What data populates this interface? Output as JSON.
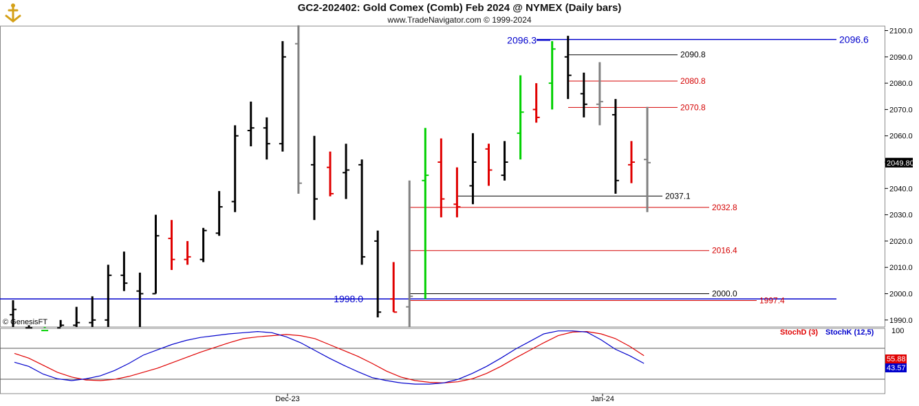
{
  "header": {
    "title": "GC2-202402:  Gold Comex (Comb) Feb 2024 @ NYMEX  (Daily bars)",
    "subtitle": "www.TradeNavigator.com © 1999-2024",
    "watermark": "© GenesisFT"
  },
  "colors": {
    "up_bar": "#000000",
    "down_bar": "#e00000",
    "neutral_bar": "#808080",
    "limit_bar": "#00d000",
    "stoch_d": "#e00000",
    "stoch_k": "#0000cc",
    "level_blue": "#0000cc",
    "level_red": "#d40000",
    "level_black": "#000000"
  },
  "chart_data": [
    {
      "type": "ohlc",
      "title": "GC2-202402:  Gold Comex (Comb) Feb 2024 @ NYMEX  (Daily bars)",
      "ylim": [
        1985,
        2105
      ],
      "y_ticks": [
        1990.0,
        2000.0,
        2010.0,
        2020.0,
        2030.0,
        2040.0,
        2050.0,
        2060.0,
        2070.0,
        2080.0,
        2090.0,
        2100.0
      ],
      "x_labels": [
        "Dec-23",
        "Jan-24"
      ],
      "last_price": "2049.80",
      "bars": [
        {
          "high": 1997.5,
          "low": 1985,
          "open": 1992,
          "close": 1994,
          "color": "black"
        },
        {
          "high": 1988,
          "low": 1985,
          "open": 1987,
          "close": 1987,
          "color": "black"
        },
        {
          "high": 1987,
          "low": 1985,
          "open": 1986,
          "close": 1986,
          "color": "green"
        },
        {
          "high": 1990,
          "low": 1985,
          "open": 1987,
          "close": 1988,
          "color": "black"
        },
        {
          "high": 1995,
          "low": 1985,
          "open": 1988,
          "close": 1989,
          "color": "black"
        },
        {
          "high": 1999,
          "low": 1985,
          "open": 1989,
          "close": 1990,
          "color": "black"
        },
        {
          "high": 2011,
          "low": 1986,
          "open": 1990,
          "close": 2007,
          "color": "black"
        },
        {
          "high": 2016,
          "low": 2001,
          "open": 2007,
          "close": 2004,
          "color": "black"
        },
        {
          "high": 2008,
          "low": 1986,
          "open": 2001,
          "close": 2000,
          "color": "black"
        },
        {
          "high": 2030,
          "low": 2000,
          "open": 2000,
          "close": 2022,
          "color": "black"
        },
        {
          "high": 2028,
          "low": 2009,
          "open": 2021,
          "close": 2013,
          "color": "red"
        },
        {
          "high": 2020,
          "low": 2011,
          "open": 2013,
          "close": 2014,
          "color": "red"
        },
        {
          "high": 2025,
          "low": 2012,
          "open": 2013,
          "close": 2024,
          "color": "black"
        },
        {
          "high": 2039,
          "low": 2022,
          "open": 2023,
          "close": 2033,
          "color": "black"
        },
        {
          "high": 2064,
          "low": 2031,
          "open": 2035,
          "close": 2060,
          "color": "black"
        },
        {
          "high": 2073,
          "low": 2056,
          "open": 2062,
          "close": 2063,
          "color": "black"
        },
        {
          "high": 2067,
          "low": 2051,
          "open": 2063,
          "close": 2057,
          "color": "black"
        },
        {
          "high": 2096,
          "low": 2054,
          "open": 2057,
          "close": 2090,
          "color": "black"
        },
        {
          "high": 2102,
          "low": 2038,
          "open": 2095,
          "close": 2042,
          "color": "gray"
        },
        {
          "high": 2060,
          "low": 2028,
          "open": 2049,
          "close": 2036,
          "color": "black"
        },
        {
          "high": 2054,
          "low": 2037,
          "open": 2048,
          "close": 2038,
          "color": "red"
        },
        {
          "high": 2057,
          "low": 2036,
          "open": 2046,
          "close": 2047,
          "color": "black"
        },
        {
          "high": 2051,
          "low": 2011,
          "open": 2049,
          "close": 2014,
          "color": "black"
        },
        {
          "high": 2024,
          "low": 1991,
          "open": 2020,
          "close": 1993,
          "color": "black"
        },
        {
          "high": 2012,
          "low": 1993,
          "open": 1998,
          "close": 1993,
          "color": "red"
        },
        {
          "high": 2043,
          "low": 1985,
          "open": 1995,
          "close": 1999,
          "color": "gray"
        },
        {
          "high": 2063,
          "low": 1998,
          "open": 2043,
          "close": 2045,
          "color": "green"
        },
        {
          "high": 2059,
          "low": 2029,
          "open": 2050,
          "close": 2036,
          "color": "red"
        },
        {
          "high": 2048,
          "low": 2029,
          "open": 2034,
          "close": 2033,
          "color": "red"
        },
        {
          "high": 2061,
          "low": 2034,
          "open": 2041,
          "close": 2050,
          "color": "black"
        },
        {
          "high": 2057,
          "low": 2041,
          "open": 2055,
          "close": 2047,
          "color": "red"
        },
        {
          "high": 2058,
          "low": 2043,
          "open": 2045,
          "close": 2050,
          "color": "black"
        },
        {
          "high": 2083,
          "low": 2051,
          "open": 2061,
          "close": 2069,
          "color": "green"
        },
        {
          "high": 2080,
          "low": 2065,
          "open": 2070,
          "close": 2067,
          "color": "red"
        },
        {
          "high": 2096,
          "low": 2070,
          "open": 2080,
          "close": 2093,
          "color": "green"
        },
        {
          "high": 2098,
          "low": 2074,
          "open": 2090,
          "close": 2083,
          "color": "black"
        },
        {
          "high": 2084,
          "low": 2067,
          "open": 2076,
          "close": 2072,
          "color": "black"
        },
        {
          "high": 2088,
          "low": 2064,
          "open": 2072,
          "close": 2073,
          "color": "gray"
        },
        {
          "high": 2074,
          "low": 2038,
          "open": 2068,
          "close": 2043,
          "color": "black"
        },
        {
          "high": 2058,
          "low": 2042,
          "open": 2049,
          "close": 2050,
          "color": "red"
        },
        {
          "high": 2071,
          "low": 2031,
          "open": 2051,
          "close": 2049.8,
          "color": "gray"
        }
      ],
      "levels": [
        {
          "value": 2096.6,
          "label": "2096.6",
          "color": "blue"
        },
        {
          "value": 2096.3,
          "label": "2096.3",
          "color": "blue"
        },
        {
          "value": 2090.8,
          "label": "2090.8",
          "color": "black"
        },
        {
          "value": 2080.8,
          "label": "2080.8",
          "color": "red"
        },
        {
          "value": 2070.8,
          "label": "2070.8",
          "color": "red"
        },
        {
          "value": 2037.1,
          "label": "2037.1",
          "color": "black"
        },
        {
          "value": 2032.8,
          "label": "2032.8",
          "color": "red"
        },
        {
          "value": 2016.4,
          "label": "2016.4",
          "color": "red"
        },
        {
          "value": 2000.0,
          "label": "2000.0",
          "color": "black"
        },
        {
          "value": 1998.0,
          "label": "1998.0",
          "color": "blue"
        },
        {
          "value": 1997.4,
          "label": "1997.4",
          "color": "red"
        }
      ]
    },
    {
      "type": "line",
      "title": "Stochastic",
      "ylim": [
        0,
        100
      ],
      "y_ticks": [
        100
      ],
      "series": [
        {
          "name": "StochD (3)",
          "color": "red",
          "last_label": "55.88",
          "values": [
            60,
            52,
            40,
            28,
            20,
            15,
            14,
            16,
            21,
            28,
            35,
            44,
            53,
            62,
            70,
            78,
            85,
            88,
            90,
            92,
            90,
            85,
            75,
            65,
            55,
            43,
            30,
            20,
            14,
            11,
            10,
            12,
            17,
            26,
            38,
            52,
            65,
            78,
            90,
            96,
            97,
            93,
            85,
            72,
            56
          ]
        },
        {
          "name": "StochK (12,5)",
          "color": "blue",
          "last_label": "43.57",
          "values": [
            45,
            38,
            25,
            17,
            14,
            17,
            22,
            31,
            43,
            57,
            66,
            75,
            82,
            87,
            90,
            93,
            95,
            97,
            95,
            88,
            78,
            65,
            52,
            40,
            29,
            19,
            14,
            10,
            8,
            8,
            10,
            16,
            26,
            38,
            52,
            67,
            80,
            93,
            98,
            98,
            96,
            83,
            67,
            56,
            43
          ]
        }
      ]
    }
  ]
}
